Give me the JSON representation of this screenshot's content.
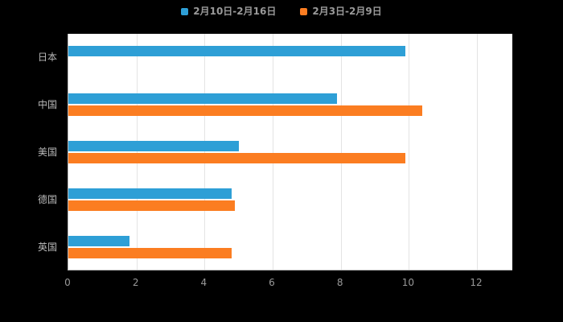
{
  "chart_data": {
    "type": "bar",
    "orientation": "horizontal",
    "title": "",
    "xlabel": "",
    "ylabel": "",
    "categories": [
      "日本",
      "中国",
      "美国",
      "德国",
      "英国"
    ],
    "series": [
      {
        "name": "2月10日-2月16日",
        "color": "#2E9FD6",
        "values": [
          9.9,
          7.9,
          5.0,
          4.8,
          1.8
        ]
      },
      {
        "name": "2月3日-2月9日",
        "color": "#FB7D21",
        "values": [
          0,
          10.4,
          9.9,
          4.9,
          4.8
        ]
      }
    ],
    "xlim": [
      0,
      12
    ],
    "xticks": [
      0,
      2,
      4,
      6,
      8,
      10,
      12
    ],
    "grid": true,
    "legend_position": "top",
    "colors": {
      "page_background": "#000000",
      "plot_background": "#ffffff",
      "gridline": "#e4e4e4",
      "axis_line": "#b9b9b9",
      "tick_label": "#999999",
      "category_label": "#b9b9b9",
      "legend_label": "#999999"
    }
  }
}
